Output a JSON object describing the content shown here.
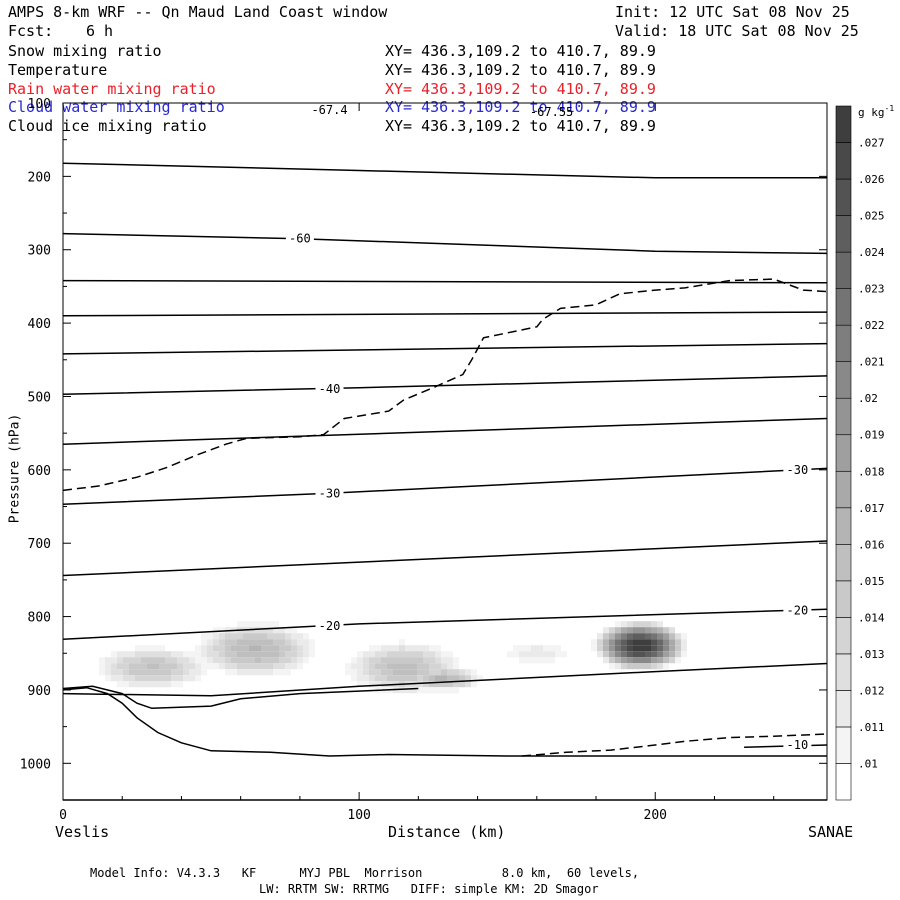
{
  "header": {
    "title": "AMPS 8-km WRF -- Qn Maud Land Coast window",
    "init": "Init: 12 UTC Sat 08 Nov 25",
    "fcst_label": "Fcst:",
    "fcst_value": "6 h",
    "valid": "Valid: 18 UTC Sat 08 Nov 25"
  },
  "fields": [
    {
      "name": "Snow mixing ratio",
      "xy": "XY= 436.3,109.2 to 410.7, 89.9",
      "color": "#000000"
    },
    {
      "name": "Temperature",
      "xy": "XY= 436.3,109.2 to 410.7, 89.9",
      "color": "#000000"
    },
    {
      "name": "Rain water mixing ratio",
      "xy": "XY= 436.3,109.2 to 410.7, 89.9",
      "color": "#e8202a"
    },
    {
      "name": "Cloud water mixing ratio",
      "xy": "XY= 436.3,109.2 to 410.7, 89.9",
      "color": "#2a2ad0"
    },
    {
      "name": "Cloud ice mixing ratio",
      "xy": "XY= 436.3,109.2 to 410.7, 89.9",
      "color": "#000000"
    }
  ],
  "chart_data": {
    "type": "heatmap",
    "title": "Snow mixing ratio",
    "xlabel": "Distance (km)",
    "ylabel": "Pressure (hPa)",
    "xlim": [
      0,
      258
    ],
    "ylim": [
      1050,
      100
    ],
    "x_ticks": [
      0,
      100,
      200
    ],
    "y_ticks": [
      100,
      200,
      300,
      400,
      500,
      600,
      700,
      800,
      900,
      1000
    ],
    "left_endpoint_label": "Veslis",
    "right_endpoint_label": "SANAE",
    "colorbar": {
      "unit": "g kg",
      "unit_sup": "-1",
      "ticks": [
        ".01",
        ".011",
        ".012",
        ".013",
        ".014",
        ".015",
        ".016",
        ".017",
        ".018",
        ".019",
        ".02",
        ".021",
        ".022",
        ".023",
        ".024",
        ".025",
        ".026",
        ".027"
      ],
      "min": 0.0095,
      "max": 0.0281
    },
    "snow_blobs": [
      {
        "x": 65,
        "p": 845,
        "rx": 30,
        "rp": 55,
        "peak": 0.0165
      },
      {
        "x": 30,
        "p": 870,
        "rx": 30,
        "rp": 45,
        "peak": 0.0155
      },
      {
        "x": 115,
        "p": 870,
        "rx": 30,
        "rp": 55,
        "peak": 0.0158
      },
      {
        "x": 128,
        "p": 885,
        "rx": 20,
        "rp": 25,
        "peak": 0.0165
      },
      {
        "x": 160,
        "p": 850,
        "rx": 28,
        "rp": 35,
        "peak": 0.012
      },
      {
        "x": 195,
        "p": 840,
        "rx": 16,
        "rp": 35,
        "peak": 0.0285
      }
    ],
    "temperature_isotherms": [
      {
        "points": [
          [
            0,
            1050
          ],
          [
            258,
            1050
          ]
        ],
        "label": ""
      },
      {
        "points": [
          [
            0,
            182
          ],
          [
            100,
            192
          ],
          [
            200,
            202
          ],
          [
            258,
            202
          ]
        ],
        "label": ""
      },
      {
        "points": [
          [
            0,
            278
          ],
          [
            80,
            285
          ],
          [
            200,
            302
          ],
          [
            258,
            305
          ]
        ],
        "label": "-60",
        "label_at": [
          80,
          285
        ]
      },
      {
        "points": [
          [
            0,
            342
          ],
          [
            258,
            345
          ]
        ],
        "label": ""
      },
      {
        "points": [
          [
            0,
            390
          ],
          [
            258,
            385
          ]
        ],
        "label": ""
      },
      {
        "points": [
          [
            0,
            442
          ],
          [
            258,
            428
          ]
        ],
        "label": ""
      },
      {
        "points": [
          [
            0,
            497
          ],
          [
            100,
            488
          ],
          [
            258,
            472
          ]
        ],
        "label": "-40",
        "label_at": [
          90,
          490
        ]
      },
      {
        "points": [
          [
            0,
            565
          ],
          [
            258,
            530
          ]
        ],
        "label": ""
      },
      {
        "points": [
          [
            0,
            647
          ],
          [
            90,
            632
          ],
          [
            258,
            598
          ]
        ],
        "label": "-30",
        "label_at": [
          90,
          632
        ],
        "label2": "-30",
        "label2_at": [
          248,
          600
        ]
      },
      {
        "points": [
          [
            0,
            744
          ],
          [
            258,
            697
          ]
        ],
        "label": ""
      },
      {
        "points": [
          [
            0,
            831
          ],
          [
            100,
            810
          ],
          [
            258,
            790
          ]
        ],
        "label": "-20",
        "label_at": [
          90,
          813
        ],
        "label2": "-20",
        "label2_at": [
          248,
          792
        ]
      },
      {
        "points": [
          [
            0,
            905
          ],
          [
            50,
            908
          ],
          [
            100,
            895
          ],
          [
            200,
            875
          ],
          [
            258,
            864
          ]
        ],
        "label": ""
      },
      {
        "points": [
          [
            0,
            898
          ],
          [
            10,
            895
          ],
          [
            20,
            905
          ],
          [
            25,
            918
          ],
          [
            30,
            925
          ],
          [
            50,
            922
          ],
          [
            60,
            912
          ],
          [
            80,
            905
          ],
          [
            120,
            898
          ]
        ],
        "label": ""
      },
      {
        "points": [
          [
            230,
            978
          ],
          [
            258,
            975
          ]
        ],
        "label": "-10",
        "label_at": [
          248,
          975
        ]
      }
    ],
    "top_labels": [
      {
        "text": "-67.4",
        "x": 90,
        "p": 115
      },
      {
        "text": "-67.55",
        "x": 165,
        "p": 118
      }
    ],
    "terrain": [
      [
        0,
        900
      ],
      [
        8,
        897
      ],
      [
        15,
        905
      ],
      [
        20,
        918
      ],
      [
        25,
        938
      ],
      [
        32,
        958
      ],
      [
        40,
        972
      ],
      [
        50,
        983
      ],
      [
        70,
        985
      ],
      [
        90,
        990
      ],
      [
        110,
        988
      ],
      [
        150,
        990
      ],
      [
        258,
        990
      ]
    ],
    "tropopause_dashed": [
      [
        0,
        628
      ],
      [
        12,
        622
      ],
      [
        25,
        610
      ],
      [
        35,
        597
      ],
      [
        45,
        580
      ],
      [
        55,
        565
      ],
      [
        62,
        557
      ],
      [
        80,
        555
      ],
      [
        88,
        552
      ],
      [
        95,
        530
      ],
      [
        110,
        520
      ],
      [
        115,
        505
      ],
      [
        125,
        488
      ],
      [
        135,
        470
      ],
      [
        138,
        450
      ],
      [
        142,
        420
      ],
      [
        160,
        405
      ],
      [
        162,
        395
      ],
      [
        168,
        380
      ],
      [
        180,
        375
      ],
      [
        188,
        360
      ],
      [
        200,
        355
      ],
      [
        210,
        352
      ],
      [
        225,
        342
      ],
      [
        240,
        340
      ],
      [
        250,
        355
      ],
      [
        258,
        357
      ]
    ],
    "surface_dashed": [
      [
        155,
        990
      ],
      [
        170,
        985
      ],
      [
        185,
        982
      ],
      [
        200,
        975
      ],
      [
        210,
        970
      ],
      [
        225,
        965
      ],
      [
        240,
        963
      ],
      [
        258,
        960
      ]
    ]
  },
  "footer": {
    "line1": "Model Info: V4.3.3   KF      MYJ PBL  Morrison           8.0 km,  60 levels,",
    "line2": "LW: RRTM SW: RRTMG   DIFF: simple KM: 2D Smagor"
  }
}
